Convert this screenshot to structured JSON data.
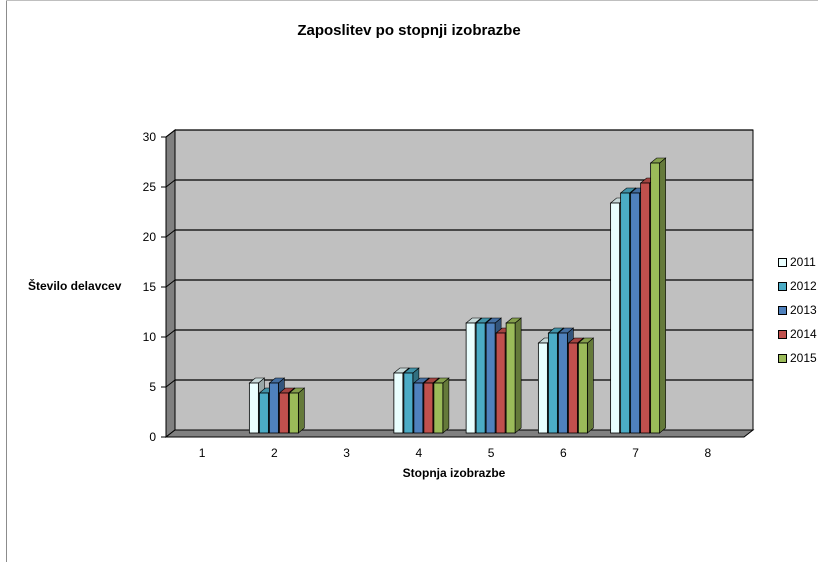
{
  "chart_data": {
    "type": "bar",
    "title": "Zaposlitev po stopnji izobrazbe",
    "xlabel": "Stopnja izobrazbe",
    "ylabel": "Število delavcev",
    "categories": [
      "1",
      "2",
      "3",
      "4",
      "5",
      "6",
      "7",
      "8"
    ],
    "ylim": [
      0,
      30
    ],
    "yticks": [
      "0",
      "5",
      "10",
      "15",
      "20",
      "25",
      "30"
    ],
    "grid": true,
    "legend_position": "right",
    "series": [
      {
        "name": "2011",
        "color": "#eaffff",
        "values": [
          0,
          5,
          0,
          6,
          11,
          9,
          23,
          0
        ]
      },
      {
        "name": "2012",
        "color": "#4bacc6",
        "values": [
          0,
          4,
          0,
          6,
          11,
          10,
          24,
          0
        ]
      },
      {
        "name": "2013",
        "color": "#4f81bd",
        "values": [
          0,
          5,
          0,
          5,
          11,
          10,
          24,
          0
        ]
      },
      {
        "name": "2014",
        "color": "#c0504d",
        "values": [
          0,
          4,
          0,
          5,
          10,
          9,
          25,
          0
        ]
      },
      {
        "name": "2015",
        "color": "#9bbb59",
        "values": [
          0,
          4,
          0,
          5,
          11,
          9,
          27,
          0
        ]
      }
    ]
  }
}
